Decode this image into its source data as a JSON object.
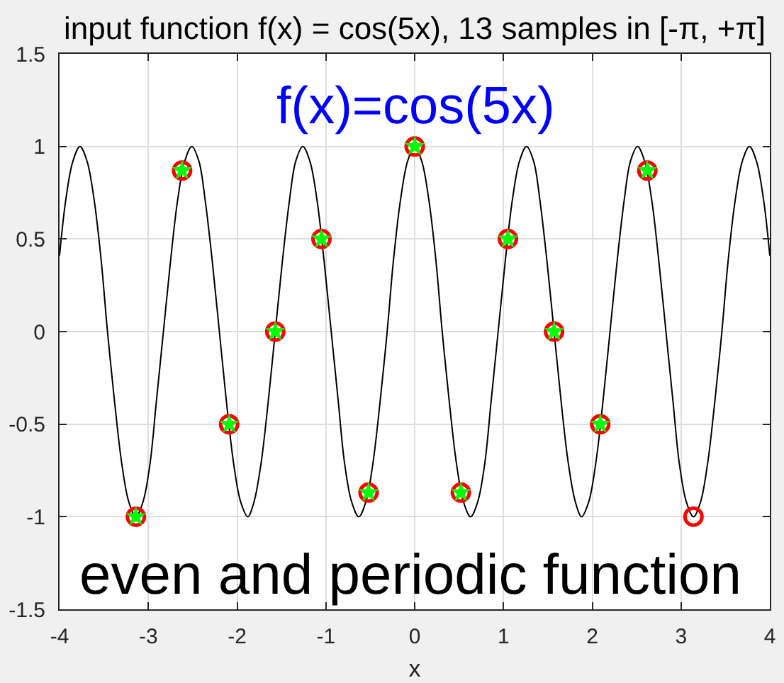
{
  "chart_data": {
    "type": "line",
    "title": "input function f(x) = cos(5x), 13 samples in [-π, +π]",
    "xlabel": "x",
    "annotations": [
      "f(x)=cos(5x)",
      "even and periodic function"
    ],
    "series": [
      {
        "color": "#000000",
        "x": [
          -4,
          -3.93,
          -3.85,
          -3.77,
          -3.69,
          -3.61,
          -3.53,
          -3.46,
          -3.38,
          -3.3,
          -3.22,
          -3.14,
          -3.06,
          -2.98,
          -2.91,
          -2.83,
          -2.75,
          -2.67,
          -2.59,
          -2.51,
          -2.43,
          -2.36,
          -2.28,
          -2.2,
          -2.12,
          -2.04,
          -1.96,
          -1.88,
          -1.81,
          -1.73,
          -1.65,
          -1.57,
          -1.49,
          -1.41,
          -1.34,
          -1.26,
          -1.18,
          -1.1,
          -1.02,
          -0.94,
          -0.86,
          -0.79,
          -0.71,
          -0.63,
          -0.55,
          -0.47,
          -0.39,
          -0.31,
          -0.24,
          -0.16,
          -0.08,
          0,
          0.08,
          0.16,
          0.24,
          0.31,
          0.39,
          0.47,
          0.55,
          0.63,
          0.71,
          0.79,
          0.86,
          0.94,
          1.02,
          1.1,
          1.18,
          1.26,
          1.34,
          1.41,
          1.49,
          1.57,
          1.65,
          1.73,
          1.81,
          1.88,
          1.96,
          2.04,
          2.12,
          2.2,
          2.28,
          2.36,
          2.43,
          2.51,
          2.59,
          2.67,
          2.75,
          2.83,
          2.91,
          2.98,
          3.06,
          3.14,
          3.22,
          3.3,
          3.38,
          3.46,
          3.53,
          3.61,
          3.69,
          3.77,
          3.85,
          3.93,
          4
        ],
        "values": [
          0.41,
          0.71,
          0.92,
          1,
          0.92,
          0.71,
          0.38,
          0,
          -0.38,
          -0.71,
          -0.92,
          -1,
          -0.92,
          -0.71,
          -0.38,
          0,
          0.38,
          0.71,
          0.92,
          1,
          0.92,
          0.71,
          0.38,
          0,
          -0.38,
          -0.71,
          -0.92,
          -1,
          -0.92,
          -0.71,
          -0.38,
          0,
          0.38,
          0.71,
          0.92,
          1,
          0.92,
          0.71,
          0.38,
          0,
          -0.38,
          -0.71,
          -0.92,
          -1,
          -0.92,
          -0.71,
          -0.38,
          0,
          0.38,
          0.71,
          0.92,
          1,
          0.92,
          0.71,
          0.38,
          0,
          -0.38,
          -0.71,
          -0.92,
          -1,
          -0.92,
          -0.71,
          -0.38,
          0,
          0.38,
          0.71,
          0.92,
          1,
          0.92,
          0.71,
          0.38,
          0,
          -0.38,
          -0.71,
          -0.92,
          -1,
          -0.92,
          -0.71,
          -0.38,
          0,
          0.38,
          0.71,
          0.92,
          1,
          0.92,
          0.71,
          0.38,
          0,
          -0.38,
          -0.71,
          -0.92,
          -1,
          -0.92,
          -0.71,
          -0.38,
          0,
          0.38,
          0.71,
          0.92,
          1,
          0.92,
          0.71,
          0.41
        ]
      },
      {
        "type": "scatter",
        "color": "#ff0000",
        "marker": "circle",
        "x": [
          -3.14,
          -2.62,
          -2.09,
          -1.57,
          -1.05,
          -0.52,
          0,
          0.52,
          1.05,
          1.57,
          2.09,
          2.62,
          3.14
        ],
        "values": [
          -1,
          0.87,
          -0.5,
          0,
          0.5,
          -0.87,
          1,
          -0.87,
          0.5,
          0,
          -0.5,
          0.87,
          -1
        ]
      },
      {
        "type": "scatter",
        "color": "#00ff00",
        "marker": "star",
        "x": [
          -3.14,
          -2.62,
          -2.09,
          -1.57,
          -1.05,
          -0.52,
          0,
          0.52,
          1.05,
          1.57,
          2.09,
          2.62
        ],
        "values": [
          -1,
          0.87,
          -0.5,
          0,
          0.5,
          -0.87,
          1,
          -0.87,
          0.5,
          0,
          -0.5,
          0.87
        ]
      }
    ],
    "xlim": [
      -4,
      4
    ],
    "xticks": [
      -4,
      -3,
      -2,
      -1,
      0,
      1,
      2,
      3,
      4
    ],
    "ylim": [
      -1.5,
      1.5
    ],
    "yticks": [
      -1.5,
      -1,
      -0.5,
      0,
      0.5,
      1,
      1.5
    ],
    "grid": true
  }
}
